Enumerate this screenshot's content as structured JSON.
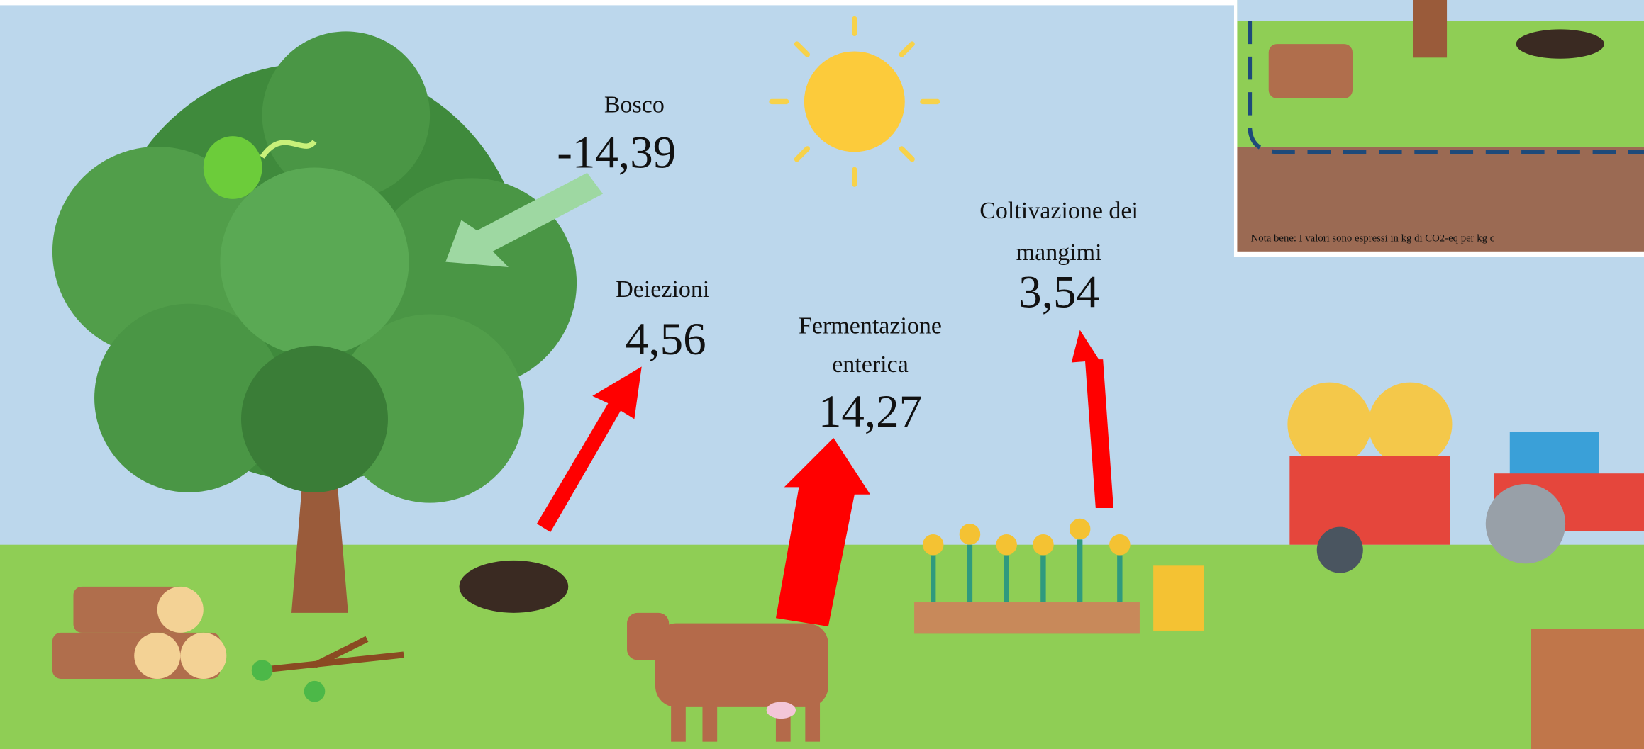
{
  "items": [
    {
      "label": [
        "Bosco"
      ],
      "value": "-14,39"
    },
    {
      "label": [
        "Deiezioni"
      ],
      "value": "4,56"
    },
    {
      "label": [
        "Fermentazione",
        "enterica"
      ],
      "value": "14,27"
    },
    {
      "label": [
        "Coltivazione dei",
        "mangimi"
      ],
      "value": "3,54"
    }
  ],
  "note": "Nota bene: I valori sono espressi in kg di CO2-eq per kg c"
}
